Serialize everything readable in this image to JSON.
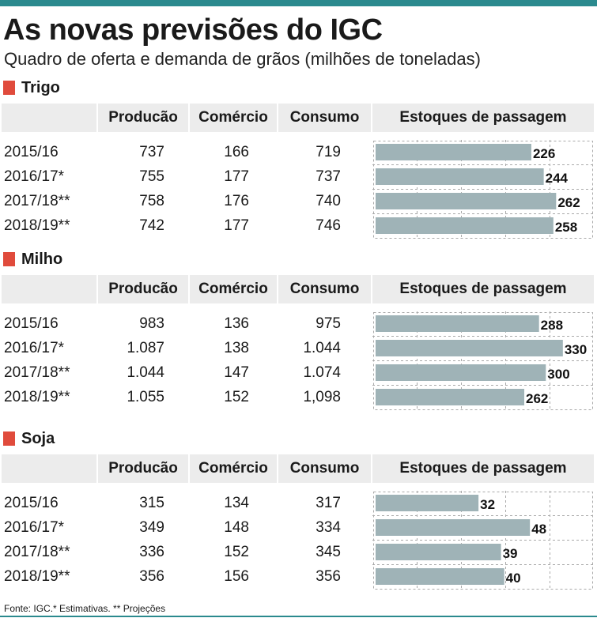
{
  "title": "As novas previsões do IGC",
  "subtitle": "Quadro de oferta e demanda de grãos (milhões de toneladas)",
  "columns": {
    "producao": "Producão",
    "comercio": "Comércio",
    "consumo": "Consumo",
    "estoques": "Estoques de passagem"
  },
  "colors": {
    "bar": "#9fb3b7",
    "accent": "#e04b3c",
    "header_bg": "#ececec",
    "top_bar": "#2b8a8e"
  },
  "footer": "Fonte: IGC.* Estimativas. ** Projeções",
  "sections": [
    {
      "name": "Trigo",
      "rows": [
        {
          "year": "2015/16",
          "producao": "737",
          "comercio": "166",
          "consumo": "719"
        },
        {
          "year": "2016/17*",
          "producao": "755",
          "comercio": "177",
          "consumo": "737"
        },
        {
          "year": "2017/18**",
          "producao": "758",
          "comercio": "176",
          "consumo": "740"
        },
        {
          "year": "2018/19**",
          "producao": "742",
          "comercio": "177",
          "consumo": "746"
        }
      ]
    },
    {
      "name": "Milho",
      "rows": [
        {
          "year": "2015/16",
          "producao": "983",
          "comercio": "136",
          "consumo": "975"
        },
        {
          "year": "2016/17*",
          "producao": "1.087",
          "comercio": "138",
          "consumo": "1.044"
        },
        {
          "year": "2017/18**",
          "producao": "1.044",
          "comercio": "147",
          "consumo": "1.074"
        },
        {
          "year": "2018/19**",
          "producao": "1.055",
          "comercio": "152",
          "consumo": "1,098"
        }
      ]
    },
    {
      "name": "Soja",
      "rows": [
        {
          "year": "2015/16",
          "producao": "315",
          "comercio": "134",
          "consumo": "317"
        },
        {
          "year": "2016/17*",
          "producao": "349",
          "comercio": "148",
          "consumo": "334"
        },
        {
          "year": "2017/18**",
          "producao": "336",
          "comercio": "152",
          "consumo": "345"
        },
        {
          "year": "2018/19**",
          "producao": "356",
          "comercio": "156",
          "consumo": "356"
        }
      ]
    }
  ],
  "chart_data": [
    {
      "type": "bar",
      "orientation": "horizontal",
      "title": "Trigo — Estoques de passagem",
      "categories": [
        "2015/16",
        "2016/17*",
        "2017/18**",
        "2018/19**"
      ],
      "values": [
        226,
        244,
        262,
        258
      ],
      "xlim": [
        0,
        280
      ],
      "grid": true
    },
    {
      "type": "bar",
      "orientation": "horizontal",
      "title": "Milho — Estoques de passagem",
      "categories": [
        "2015/16",
        "2016/17*",
        "2017/18**",
        "2018/19**"
      ],
      "values": [
        288,
        330,
        300,
        262
      ],
      "xlim": [
        0,
        340
      ],
      "grid": true
    },
    {
      "type": "bar",
      "orientation": "horizontal",
      "title": "Soja — Estoques de passagem",
      "categories": [
        "2015/16",
        "2016/17*",
        "2017/18**",
        "2018/19**"
      ],
      "values": [
        32,
        48,
        39,
        40
      ],
      "xlim": [
        0,
        60
      ],
      "grid": true
    }
  ]
}
